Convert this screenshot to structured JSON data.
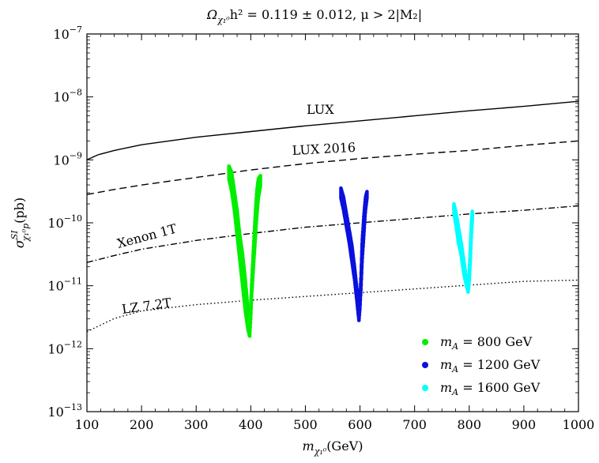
{
  "chart_data": {
    "type": "scatter",
    "title": "Ω_{χ₁⁰}h² = 0.119 ± 0.012, μ > 2|M₂|",
    "title_parts": {
      "lead": "Ω",
      "sub": "χ₁⁰",
      "rest": "h² = 0.119 ± 0.012, μ > 2|M₂|"
    },
    "xlabel": "m_{χ₁⁰}(GeV)",
    "xlabel_parts": {
      "lead": "m",
      "sub": "χ₁⁰",
      "rest": "(GeV)"
    },
    "ylabel": "σ^{SI}_{χ₁⁰p}(pb)",
    "ylabel_parts": {
      "lead": "σ",
      "sup": "SI",
      "sub": "χ₁⁰p",
      "rest": "(pb)"
    },
    "xlim": [
      100,
      1000
    ],
    "ylim_log10": [
      -13,
      -7
    ],
    "yscale": "log",
    "grid": false,
    "legend_position": "lower-right",
    "x_ticks": [
      100,
      200,
      300,
      400,
      500,
      600,
      700,
      800,
      900,
      1000
    ],
    "y_ticks": [
      {
        "base": "10",
        "exp": "−7"
      },
      {
        "base": "10",
        "exp": "−8"
      },
      {
        "base": "10",
        "exp": "−9"
      },
      {
        "base": "10",
        "exp": "−10"
      },
      {
        "base": "10",
        "exp": "−11"
      },
      {
        "base": "10",
        "exp": "−12"
      },
      {
        "base": "10",
        "exp": "−13"
      }
    ],
    "limit_curves": [
      {
        "name": "LUX",
        "style": "solid",
        "x": [
          100,
          120,
          150,
          200,
          300,
          400,
          500,
          600,
          700,
          800,
          900,
          1000
        ],
        "log10_y": [
          -9.0,
          -8.92,
          -8.85,
          -8.76,
          -8.64,
          -8.55,
          -8.46,
          -8.38,
          -8.3,
          -8.22,
          -8.15,
          -8.07
        ]
      },
      {
        "name": "LUX 2016",
        "style": "dashed",
        "x": [
          100,
          150,
          200,
          300,
          400,
          500,
          600,
          700,
          800,
          900,
          1000
        ],
        "log10_y": [
          -9.55,
          -9.47,
          -9.4,
          -9.28,
          -9.16,
          -9.06,
          -8.98,
          -8.91,
          -8.85,
          -8.77,
          -8.7
        ]
      },
      {
        "name": "Xenon 1T",
        "style": "dashdot",
        "x": [
          100,
          150,
          200,
          300,
          400,
          500,
          600,
          700,
          800,
          900,
          1000
        ],
        "log10_y": [
          -10.63,
          -10.52,
          -10.42,
          -10.28,
          -10.17,
          -10.07,
          -10.0,
          -9.93,
          -9.86,
          -9.8,
          -9.73
        ]
      },
      {
        "name": "LZ 7.2T",
        "style": "dotted",
        "x": [
          100,
          150,
          200,
          300,
          400,
          500,
          600,
          700,
          800,
          900,
          1000
        ],
        "log10_y": [
          -11.73,
          -11.52,
          -11.4,
          -11.3,
          -11.23,
          -11.17,
          -11.11,
          -11.05,
          -10.99,
          -10.93,
          -10.91
        ]
      }
    ],
    "series": [
      {
        "name": "m_A = 800 GeV",
        "legend_lead": "m",
        "legend_sub": "A",
        "legend_rest": " = 800 GeV",
        "color": "#00ee00",
        "left_branch": {
          "x": [
            360,
            365,
            370,
            375,
            380,
            385,
            390,
            395,
            398
          ],
          "log10_y_hi": [
            -9.1,
            -9.2,
            -9.5,
            -9.8,
            -10.2,
            -10.5,
            -10.9,
            -11.4,
            -11.75
          ],
          "log10_y_lo": [
            -9.3,
            -9.5,
            -9.8,
            -10.2,
            -10.6,
            -11.0,
            -11.4,
            -11.7,
            -11.8
          ]
        },
        "right_branch": {
          "x": [
            398,
            400,
            402,
            405,
            408,
            411,
            414,
            418
          ],
          "log10_y_hi": [
            -11.7,
            -11.3,
            -10.9,
            -10.4,
            -9.9,
            -9.5,
            -9.3,
            -9.25
          ],
          "log10_y_lo": [
            -11.8,
            -11.5,
            -11.1,
            -10.7,
            -10.3,
            -9.9,
            -9.6,
            -9.4
          ]
        }
      },
      {
        "name": "m_A = 1200 GeV",
        "legend_lead": "m",
        "legend_sub": "A",
        "legend_rest": " = 1200 GeV",
        "color": "#0a10dd",
        "left_branch": {
          "x": [
            565,
            570,
            575,
            580,
            585,
            590,
            595,
            598
          ],
          "log10_y_hi": [
            -9.45,
            -9.6,
            -9.85,
            -10.1,
            -10.35,
            -10.7,
            -11.1,
            -11.45
          ],
          "log10_y_lo": [
            -9.6,
            -9.8,
            -10.05,
            -10.3,
            -10.6,
            -10.9,
            -11.3,
            -11.55
          ]
        },
        "right_branch": {
          "x": [
            598,
            600,
            602,
            604,
            607,
            610,
            613
          ],
          "log10_y_hi": [
            -11.45,
            -11.2,
            -10.8,
            -10.3,
            -9.9,
            -9.6,
            -9.5
          ],
          "log10_y_lo": [
            -11.55,
            -11.35,
            -11.0,
            -10.6,
            -10.2,
            -9.8,
            -9.6
          ]
        }
      },
      {
        "name": "m_A = 1600 GeV",
        "legend_lead": "m",
        "legend_sub": "A",
        "legend_rest": " = 1600 GeV",
        "color": "#00ffff",
        "left_branch": {
          "x": [
            772,
            776,
            780,
            785,
            790,
            795,
            798
          ],
          "log10_y_hi": [
            -9.7,
            -9.85,
            -10.05,
            -10.3,
            -10.6,
            -10.9,
            -11.05
          ],
          "log10_y_lo": [
            -9.85,
            -10.05,
            -10.3,
            -10.5,
            -10.8,
            -11.0,
            -11.1
          ]
        },
        "right_branch": {
          "x": [
            798,
            800,
            802,
            804,
            806
          ],
          "log10_y_hi": [
            -11.05,
            -10.8,
            -10.4,
            -10.0,
            -9.78
          ],
          "log10_y_lo": [
            -11.1,
            -10.95,
            -10.6,
            -10.2,
            -9.9
          ]
        }
      }
    ]
  }
}
